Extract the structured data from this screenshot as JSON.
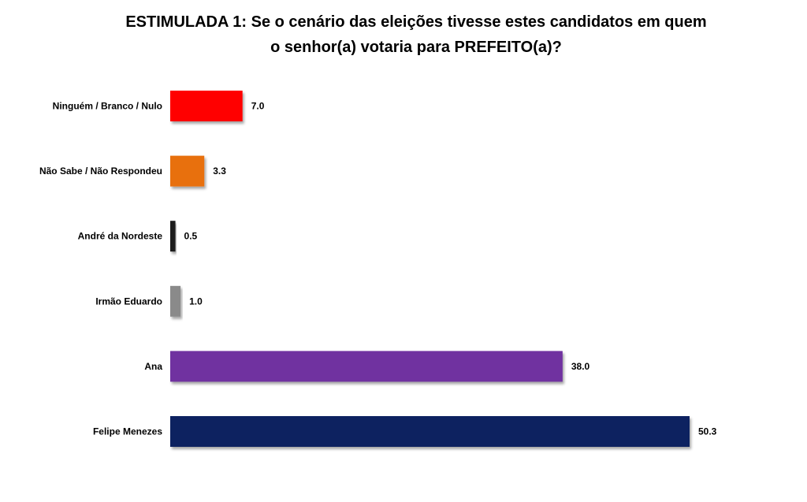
{
  "chart_data": {
    "type": "bar",
    "orientation": "horizontal",
    "title_lines": [
      "ESTIMULADA 1: Se o cenário das eleições tivesse estes candidatos em quem",
      "o senhor(a) votaria para PREFEITO(a)?"
    ],
    "categories": [
      "Ninguém / Branco / Nulo",
      "Não Sabe / Não Respondeu",
      "André da Nordeste",
      "Irmão Eduardo",
      "Ana",
      "Felipe Menezes"
    ],
    "values": [
      7.0,
      3.3,
      0.5,
      1.0,
      38.0,
      50.3
    ],
    "value_labels": [
      "7.0",
      "3.3",
      "0.5",
      "1.0",
      "38.0",
      "50.3"
    ],
    "colors": [
      "#ff0000",
      "#e8700f",
      "#1a1a1a",
      "#8a8a8a",
      "#7030a0",
      "#0b2060"
    ],
    "xlim": [
      0,
      50.3
    ],
    "grid": false,
    "legend": "none"
  }
}
